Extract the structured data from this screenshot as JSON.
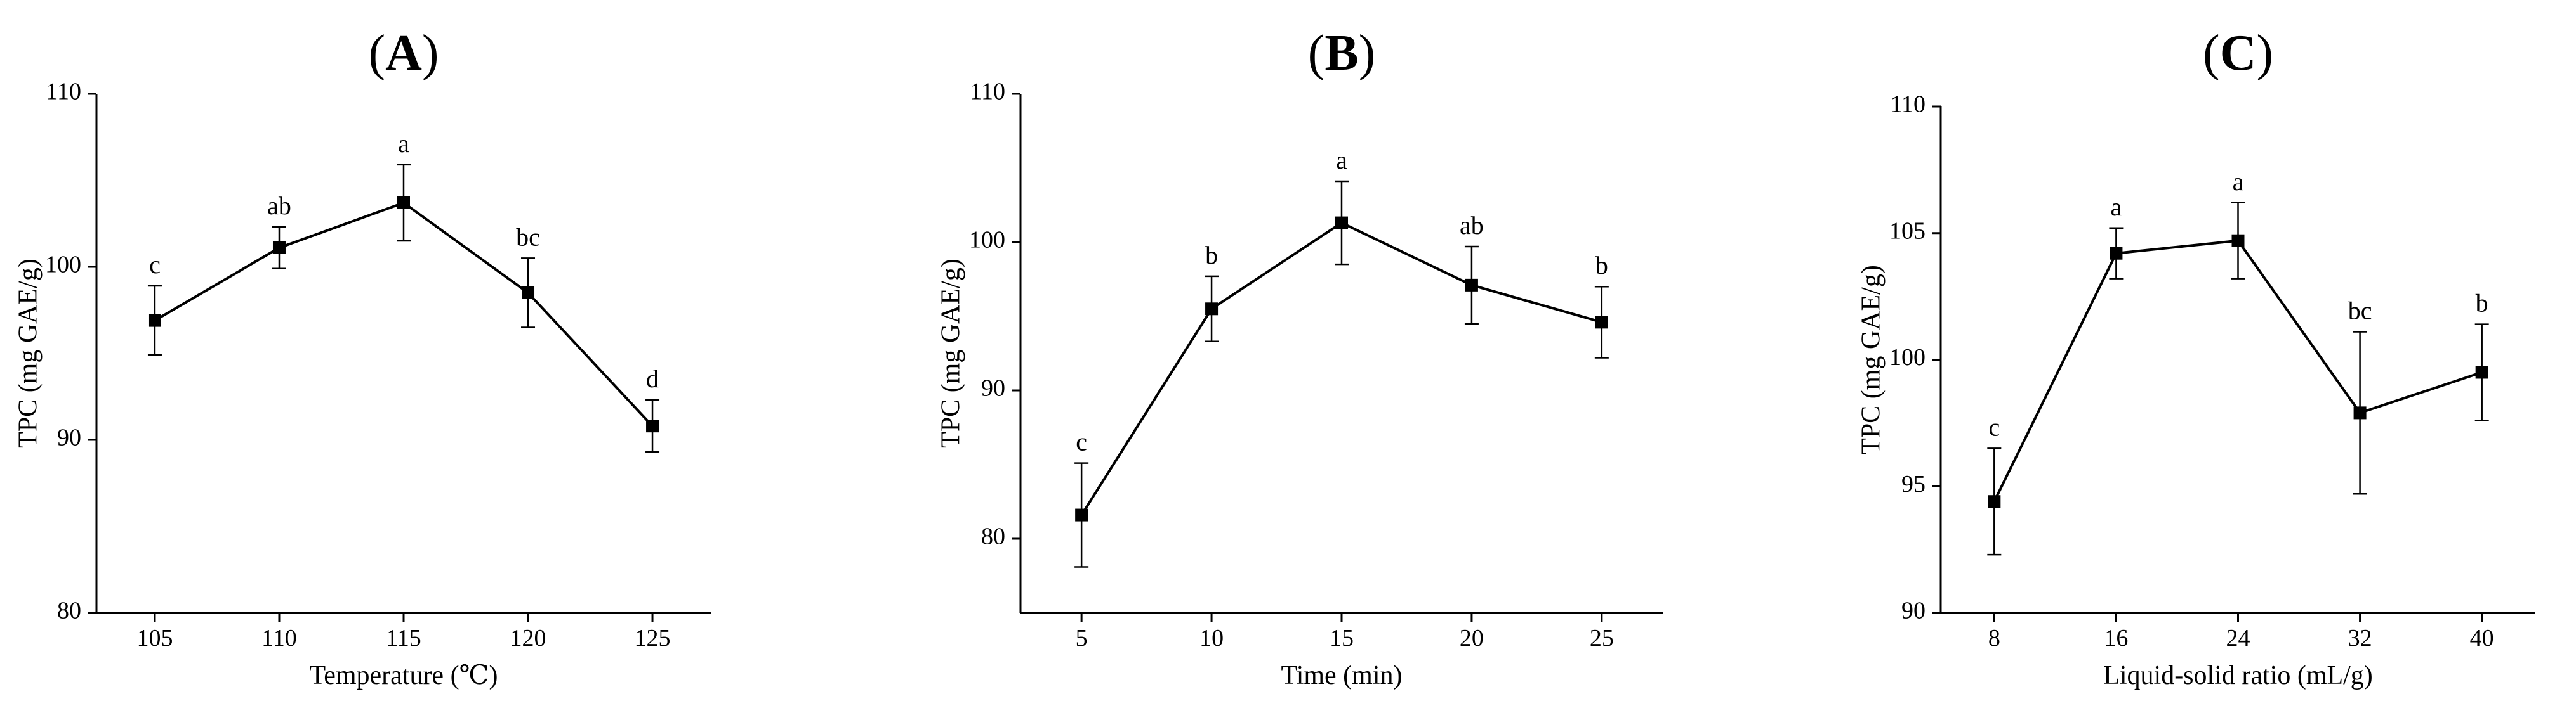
{
  "chart_data": [
    {
      "type": "line",
      "panel": "A",
      "panel_label_open": "(",
      "panel_label_close": ")",
      "xlabel": "Temperature (℃)",
      "ylabel": "TPC (mg GAE/g)",
      "ylim": [
        80,
        110
      ],
      "yticks": [
        80,
        90,
        100,
        110
      ],
      "x": [
        105,
        110,
        115,
        120,
        125
      ],
      "xtick_labels": [
        "105",
        "110",
        "115",
        "120",
        "125"
      ],
      "values": [
        96.9,
        101.1,
        103.7,
        98.5,
        90.8
      ],
      "errors": [
        2.0,
        1.2,
        2.2,
        2.0,
        1.5
      ],
      "sig_labels": [
        "c",
        "ab",
        "a",
        "bc",
        "d"
      ]
    },
    {
      "type": "line",
      "panel": "B",
      "panel_label_open": "(",
      "panel_label_close": ")",
      "xlabel": "Time (min)",
      "ylabel": "TPC (mg GAE/g)",
      "ylim": [
        75,
        110
      ],
      "yticks": [
        80,
        90,
        100,
        110
      ],
      "x": [
        5,
        10,
        15,
        20,
        25
      ],
      "xtick_labels": [
        "5",
        "10",
        "15",
        "20",
        "25"
      ],
      "values": [
        81.6,
        95.5,
        101.3,
        97.1,
        94.6
      ],
      "errors": [
        3.5,
        2.2,
        2.8,
        2.6,
        2.4
      ],
      "sig_labels": [
        "c",
        "b",
        "a",
        "ab",
        "b"
      ]
    },
    {
      "type": "line",
      "panel": "C",
      "panel_label_open": "(",
      "panel_label_close": ")",
      "xlabel": "Liquid-solid ratio (mL/g)",
      "ylabel": "TPC (mg GAE/g)",
      "ylim": [
        90,
        110
      ],
      "yticks": [
        90,
        95,
        100,
        105,
        110
      ],
      "x": [
        8,
        16,
        24,
        32,
        40
      ],
      "xtick_labels": [
        "8",
        "16",
        "24",
        "32",
        "40"
      ],
      "values": [
        94.4,
        104.2,
        104.7,
        97.9,
        99.5
      ],
      "errors": [
        2.1,
        1.0,
        1.5,
        3.2,
        1.9
      ],
      "sig_labels": [
        "c",
        "a",
        "a",
        "bc",
        "b"
      ]
    }
  ]
}
